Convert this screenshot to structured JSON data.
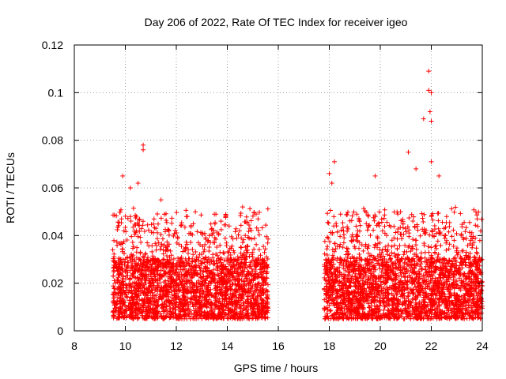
{
  "chart_data": {
    "type": "scatter",
    "title": "Day 206 of 2022, Rate Of TEC Index for receiver igeo",
    "xlabel": "GPS time / hours",
    "ylabel": "ROTI / TECUs",
    "xlim": [
      8,
      24
    ],
    "ylim": [
      0,
      0.12
    ],
    "x_ticks": [
      8,
      10,
      12,
      14,
      16,
      18,
      20,
      22,
      24
    ],
    "x_tick_labels": [
      "8",
      "10",
      "12",
      "14",
      "16",
      "18",
      "20",
      "22",
      "24"
    ],
    "y_ticks": [
      0,
      0.02,
      0.04,
      0.06,
      0.08,
      0.1,
      0.12
    ],
    "y_tick_labels": [
      "0",
      "0.02",
      "0.04",
      "0.06",
      "0.08",
      "0.1",
      "0.12"
    ],
    "grid": true,
    "marker": "+",
    "color": "#ff0000",
    "series": [
      {
        "name": "ROTI",
        "segments": [
          {
            "x_start": 9.5,
            "x_end": 15.6
          },
          {
            "x_start": 17.8,
            "x_end": 24.0
          }
        ],
        "typical_range": [
          0.005,
          0.03
        ],
        "notable_points": [
          {
            "x": 9.9,
            "y": 0.065
          },
          {
            "x": 10.2,
            "y": 0.06
          },
          {
            "x": 10.5,
            "y": 0.062
          },
          {
            "x": 10.7,
            "y": 0.078
          },
          {
            "x": 10.7,
            "y": 0.076
          },
          {
            "x": 11.4,
            "y": 0.055
          },
          {
            "x": 12.4,
            "y": 0.048
          },
          {
            "x": 14.6,
            "y": 0.052
          },
          {
            "x": 18.0,
            "y": 0.066
          },
          {
            "x": 18.1,
            "y": 0.062
          },
          {
            "x": 18.2,
            "y": 0.071
          },
          {
            "x": 19.8,
            "y": 0.065
          },
          {
            "x": 21.1,
            "y": 0.075
          },
          {
            "x": 21.4,
            "y": 0.068
          },
          {
            "x": 21.7,
            "y": 0.089
          },
          {
            "x": 21.9,
            "y": 0.109
          },
          {
            "x": 21.9,
            "y": 0.101
          },
          {
            "x": 22.0,
            "y": 0.1
          },
          {
            "x": 21.95,
            "y": 0.092
          },
          {
            "x": 22.0,
            "y": 0.088
          },
          {
            "x": 22.0,
            "y": 0.071
          },
          {
            "x": 22.3,
            "y": 0.065
          },
          {
            "x": 23.8,
            "y": 0.047
          }
        ]
      }
    ]
  }
}
